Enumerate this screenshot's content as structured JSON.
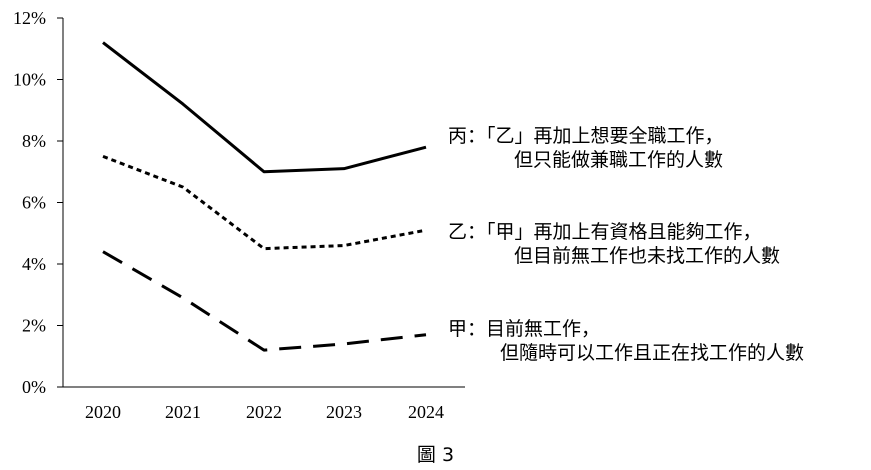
{
  "chart_data": {
    "type": "line",
    "categories": [
      "2020",
      "2021",
      "2022",
      "2023",
      "2024"
    ],
    "ylim": [
      0,
      12
    ],
    "yticks": [
      "0%",
      "2%",
      "4%",
      "6%",
      "8%",
      "10%",
      "12%"
    ],
    "grid": false,
    "series": [
      {
        "name": "丙",
        "values": [
          11.2,
          9.2,
          7.0,
          7.1,
          7.8
        ],
        "line_style": "solid",
        "label_line1": "丙：「乙」再加上想要全職工作，",
        "label_line2": "但只能做兼職工作的人數"
      },
      {
        "name": "乙",
        "values": [
          7.5,
          6.5,
          4.5,
          4.6,
          5.1
        ],
        "line_style": "dotted",
        "label_line1": "乙：「甲」再加上有資格且能夠工作，",
        "label_line2": "但目前無工作也未找工作的人數"
      },
      {
        "name": "甲",
        "values": [
          4.4,
          2.9,
          1.2,
          1.4,
          1.7
        ],
        "line_style": "dashed",
        "label_line1": "甲：目前無工作，",
        "label_line2": "但隨時可以工作且正在找工作的人數"
      }
    ],
    "caption": "圖 3"
  }
}
